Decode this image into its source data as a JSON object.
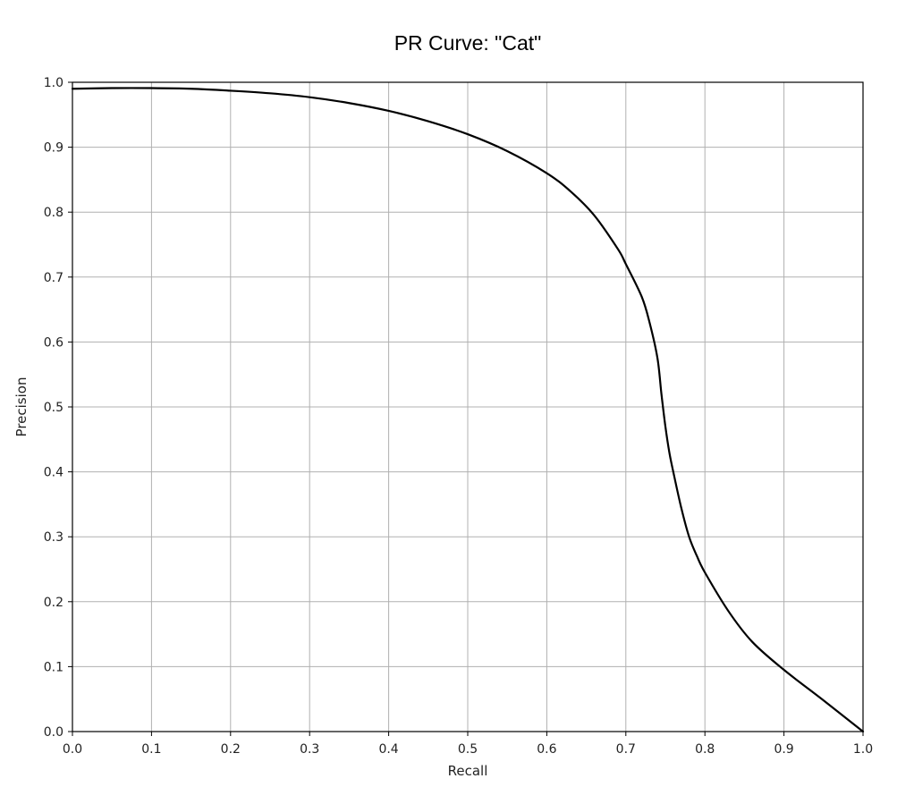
{
  "chart_data": {
    "type": "line",
    "title": "PR Curve: \"Cat\"",
    "xlabel": "Recall",
    "ylabel": "Precision",
    "xlim": [
      0.0,
      1.0
    ],
    "ylim": [
      0.0,
      1.0
    ],
    "grid": true,
    "xticks": [
      "0.0",
      "0.1",
      "0.2",
      "0.3",
      "0.4",
      "0.5",
      "0.6",
      "0.7",
      "0.8",
      "0.9",
      "1.0"
    ],
    "yticks": [
      "0.0",
      "0.1",
      "0.2",
      "0.3",
      "0.4",
      "0.5",
      "0.6",
      "0.7",
      "0.8",
      "0.9",
      "1.0"
    ],
    "series": [
      {
        "color": "#000000",
        "x": [
          0.0,
          0.05,
          0.1,
          0.15,
          0.2,
          0.25,
          0.3,
          0.35,
          0.4,
          0.45,
          0.5,
          0.55,
          0.6,
          0.63,
          0.66,
          0.69,
          0.7,
          0.72,
          0.73,
          0.74,
          0.745,
          0.75,
          0.755,
          0.76,
          0.77,
          0.78,
          0.79,
          0.8,
          0.83,
          0.86,
          0.9,
          0.95,
          1.0
        ],
        "y": [
          0.99,
          0.991,
          0.991,
          0.99,
          0.987,
          0.983,
          0.977,
          0.968,
          0.956,
          0.94,
          0.92,
          0.894,
          0.86,
          0.832,
          0.795,
          0.743,
          0.72,
          0.67,
          0.63,
          0.575,
          0.52,
          0.47,
          0.43,
          0.4,
          0.345,
          0.3,
          0.27,
          0.245,
          0.185,
          0.138,
          0.095,
          0.048,
          0.0
        ]
      }
    ]
  }
}
